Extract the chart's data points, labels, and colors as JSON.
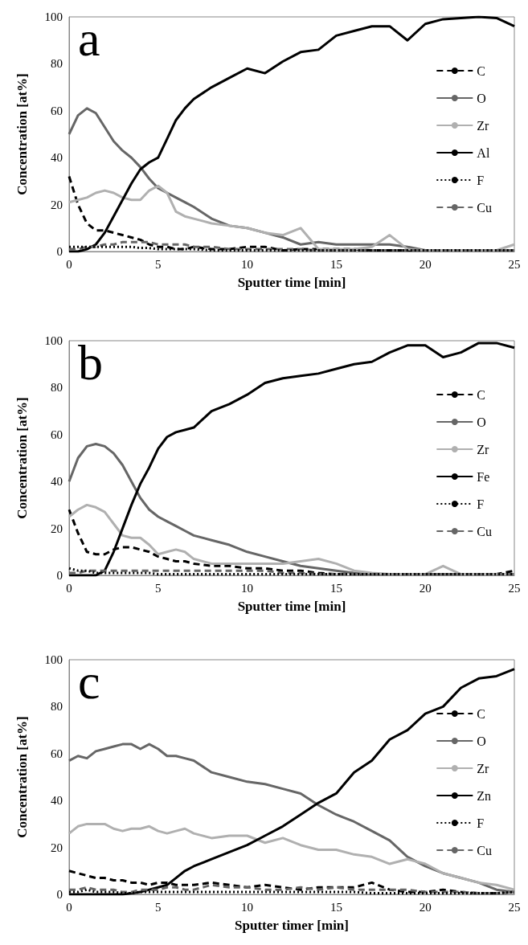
{
  "chart_data": [
    {
      "type": "line",
      "title": "a",
      "xlabel": "Sputter time [min]",
      "ylabel": "Concentration [at%]",
      "xlim": [
        0,
        25
      ],
      "xticks": [
        0,
        5,
        10,
        15,
        20,
        25
      ],
      "ylim": [
        0,
        100
      ],
      "yticks": [
        0,
        20,
        40,
        60,
        80,
        100
      ],
      "grid": false,
      "legend": "right",
      "marker": "none",
      "x": [
        0,
        0.5,
        1,
        1.5,
        2,
        2.5,
        3,
        3.5,
        4,
        4.5,
        5,
        5.5,
        6,
        6.5,
        7,
        8,
        9,
        10,
        11,
        12,
        13,
        14,
        15,
        16,
        17,
        18,
        19,
        20,
        21,
        22,
        23,
        24,
        25
      ],
      "series": [
        {
          "name": "C",
          "color": "#000000",
          "line_style": "dashed",
          "values": [
            32,
            20,
            12,
            9,
            9,
            8,
            7,
            6,
            5,
            3,
            2,
            2,
            1,
            1,
            2,
            1,
            1,
            2,
            2,
            0.5,
            1,
            1,
            1,
            1,
            0.5,
            0.5,
            0.5,
            0.5,
            0.5,
            0.5,
            0.5,
            0.5,
            0.5
          ]
        },
        {
          "name": "O",
          "color": "#666666",
          "line_style": "solid",
          "values": [
            50,
            58,
            61,
            59,
            53,
            47,
            43,
            40,
            36,
            31,
            27,
            25,
            23,
            21,
            19,
            14,
            11,
            10,
            8,
            6,
            3,
            4,
            3,
            3,
            3,
            3,
            2,
            0.5,
            0.5,
            0.5,
            0.5,
            0.5,
            0.5
          ]
        },
        {
          "name": "Zr",
          "color": "#b0b0b0",
          "line_style": "solid",
          "values": [
            21,
            22,
            23,
            25,
            26,
            25,
            23,
            22,
            22,
            26,
            28,
            25,
            17,
            15,
            14,
            12,
            11,
            10,
            8,
            7,
            10,
            1,
            1,
            1,
            2,
            7,
            1,
            0.5,
            0.5,
            0.5,
            0.5,
            0.5,
            3
          ]
        },
        {
          "name": "Al",
          "color": "#000000",
          "line_style": "solid",
          "values": [
            0,
            0,
            1,
            3,
            8,
            15,
            22,
            29,
            35,
            38,
            40,
            48,
            56,
            61,
            65,
            70,
            74,
            78,
            76,
            81,
            85,
            86,
            92,
            94,
            96,
            96,
            90,
            97,
            99,
            99.5,
            100,
            99.5,
            96
          ]
        },
        {
          "name": "F",
          "color": "#000000",
          "line_style": "dotted",
          "values": [
            2,
            2,
            2,
            2,
            2,
            2,
            2,
            2,
            1.5,
            1.5,
            1,
            1,
            1,
            1,
            1,
            0.5,
            0.5,
            0.5,
            0.5,
            0.5,
            0.5,
            0.5,
            0.5,
            0.5,
            0.5,
            0.5,
            0.5,
            0.5,
            0.5,
            0.5,
            0.5,
            0.5,
            0.5
          ]
        },
        {
          "name": "Cu",
          "color": "#666666",
          "line_style": "dashed",
          "values": [
            1,
            1,
            2,
            2,
            3,
            3,
            4,
            4,
            4,
            4,
            3,
            3,
            3,
            3,
            2,
            2,
            1,
            1,
            1,
            1,
            1,
            0.5,
            0.5,
            0.5,
            0.5,
            0.5,
            0.5,
            0.5,
            0.5,
            0.5,
            0.5,
            0.5,
            0.5
          ]
        }
      ]
    },
    {
      "type": "line",
      "title": "b",
      "xlabel": "Sputter time [min]",
      "ylabel": "Concentration [at%]",
      "xlim": [
        0,
        25
      ],
      "xticks": [
        0,
        5,
        10,
        15,
        20,
        25
      ],
      "ylim": [
        0,
        100
      ],
      "yticks": [
        0,
        20,
        40,
        60,
        80,
        100
      ],
      "grid": false,
      "legend": "right",
      "marker": "none",
      "x": [
        0,
        0.5,
        1,
        1.5,
        2,
        2.5,
        3,
        3.5,
        4,
        4.5,
        5,
        5.5,
        6,
        6.5,
        7,
        8,
        9,
        10,
        11,
        12,
        13,
        14,
        15,
        16,
        17,
        18,
        19,
        20,
        21,
        22,
        23,
        24,
        25
      ],
      "series": [
        {
          "name": "C",
          "color": "#000000",
          "line_style": "dashed",
          "values": [
            28,
            18,
            10,
            9,
            9,
            11,
            12,
            12,
            11,
            10,
            8,
            7,
            6,
            6,
            5,
            4,
            4,
            3,
            3,
            2,
            2,
            1,
            0.5,
            0.5,
            0.5,
            0.5,
            0.5,
            0.5,
            0.5,
            0.5,
            0.5,
            0.5,
            2
          ]
        },
        {
          "name": "O",
          "color": "#666666",
          "line_style": "solid",
          "values": [
            40,
            50,
            55,
            56,
            55,
            52,
            47,
            40,
            33,
            28,
            25,
            23,
            21,
            19,
            17,
            15,
            13,
            10,
            8,
            6,
            4,
            3,
            2,
            1,
            0.5,
            0.5,
            0.5,
            0.5,
            0.5,
            0.5,
            0.5,
            0.5,
            0.5
          ]
        },
        {
          "name": "Zr",
          "color": "#b0b0b0",
          "line_style": "solid",
          "values": [
            25,
            28,
            30,
            29,
            27,
            22,
            17,
            16,
            16,
            13,
            9,
            10,
            11,
            10,
            7,
            5,
            5,
            5,
            5,
            5,
            6,
            7,
            5,
            2,
            1,
            0.5,
            0.5,
            0.5,
            4,
            0.5,
            0.5,
            0.5,
            0.5
          ]
        },
        {
          "name": "Fe",
          "color": "#000000",
          "line_style": "solid",
          "values": [
            0,
            0,
            0,
            0,
            2,
            10,
            20,
            30,
            39,
            46,
            54,
            59,
            61,
            62,
            63,
            70,
            73,
            77,
            82,
            84,
            85,
            86,
            88,
            90,
            91,
            95,
            98,
            98,
            93,
            95,
            99,
            99,
            97
          ]
        },
        {
          "name": "F",
          "color": "#000000",
          "line_style": "dotted",
          "values": [
            3,
            2,
            2,
            1,
            1,
            1,
            1,
            1,
            1,
            1,
            0.5,
            0.5,
            0.5,
            0.5,
            0.5,
            0.5,
            0.5,
            0.5,
            0.5,
            0.5,
            0.5,
            0.5,
            0.5,
            0.5,
            0.5,
            0.5,
            0.5,
            0.5,
            0.5,
            0.5,
            0.5,
            0.5,
            0.5
          ]
        },
        {
          "name": "Cu",
          "color": "#666666",
          "line_style": "dashed",
          "values": [
            1,
            1,
            2,
            2,
            2,
            2,
            2,
            2,
            2,
            2,
            2,
            2,
            2,
            2,
            2,
            2,
            2,
            2,
            2,
            1,
            1,
            0.5,
            0.5,
            0.5,
            0.5,
            0.5,
            0.5,
            0.5,
            0.5,
            0.5,
            0.5,
            0.5,
            0.5
          ]
        }
      ]
    },
    {
      "type": "line",
      "title": "c",
      "xlabel": "Sputter timer [min]",
      "ylabel": "Concentration [at%]",
      "xlim": [
        0,
        25
      ],
      "xticks": [
        0,
        5,
        10,
        15,
        20,
        25
      ],
      "ylim": [
        0,
        100
      ],
      "yticks": [
        0,
        20,
        40,
        60,
        80,
        100
      ],
      "grid": false,
      "legend": "right",
      "marker": "none",
      "x": [
        0,
        0.5,
        1,
        1.5,
        2,
        2.5,
        3,
        3.5,
        4,
        4.5,
        5,
        5.5,
        6,
        6.5,
        7,
        8,
        9,
        10,
        11,
        12,
        13,
        14,
        15,
        16,
        17,
        18,
        19,
        20,
        21,
        22,
        23,
        24,
        25
      ],
      "series": [
        {
          "name": "C",
          "color": "#000000",
          "line_style": "dashed",
          "values": [
            10,
            9,
            8,
            7,
            7,
            6,
            6,
            5,
            5,
            4,
            5,
            5,
            4,
            4,
            4,
            5,
            4,
            3,
            4,
            3,
            2,
            3,
            3,
            3,
            5,
            2,
            1,
            1,
            2,
            1,
            0.5,
            0.5,
            1
          ]
        },
        {
          "name": "O",
          "color": "#666666",
          "line_style": "solid",
          "values": [
            57,
            59,
            58,
            61,
            62,
            63,
            64,
            64,
            62,
            64,
            62,
            59,
            59,
            58,
            57,
            52,
            50,
            48,
            47,
            45,
            43,
            38,
            34,
            31,
            27,
            23,
            16,
            12,
            9,
            7,
            5,
            2,
            1
          ]
        },
        {
          "name": "Zr",
          "color": "#b0b0b0",
          "line_style": "solid",
          "values": [
            26,
            29,
            30,
            30,
            30,
            28,
            27,
            28,
            28,
            29,
            27,
            26,
            27,
            28,
            26,
            24,
            25,
            25,
            22,
            24,
            21,
            19,
            19,
            17,
            16,
            13,
            15,
            13,
            9,
            7,
            5,
            4,
            2
          ]
        },
        {
          "name": "Zn",
          "color": "#000000",
          "line_style": "solid",
          "values": [
            0,
            0,
            0,
            0,
            0,
            0,
            0,
            0.5,
            1,
            2,
            3,
            4,
            7,
            10,
            12,
            15,
            18,
            21,
            25,
            29,
            34,
            39,
            43,
            52,
            57,
            66,
            70,
            77,
            80,
            88,
            92,
            93,
            96
          ]
        },
        {
          "name": "F",
          "color": "#000000",
          "line_style": "dotted",
          "values": [
            1,
            1,
            2,
            1,
            1,
            1,
            0.5,
            0.5,
            1,
            1,
            1,
            1,
            1,
            1,
            1,
            1,
            1,
            1,
            1,
            1,
            1,
            1,
            1,
            1,
            0.5,
            0.5,
            0.5,
            0.5,
            0.5,
            0.5,
            0.5,
            0.5,
            1
          ]
        },
        {
          "name": "Cu",
          "color": "#666666",
          "line_style": "dashed",
          "values": [
            2,
            2,
            3,
            2,
            2,
            2,
            1,
            1,
            2,
            2,
            2,
            3,
            3,
            2,
            2,
            4,
            3,
            3,
            2,
            2,
            3,
            2,
            3,
            2,
            2,
            2,
            2,
            1,
            1,
            1,
            0.5,
            0.5,
            1
          ]
        }
      ]
    }
  ]
}
